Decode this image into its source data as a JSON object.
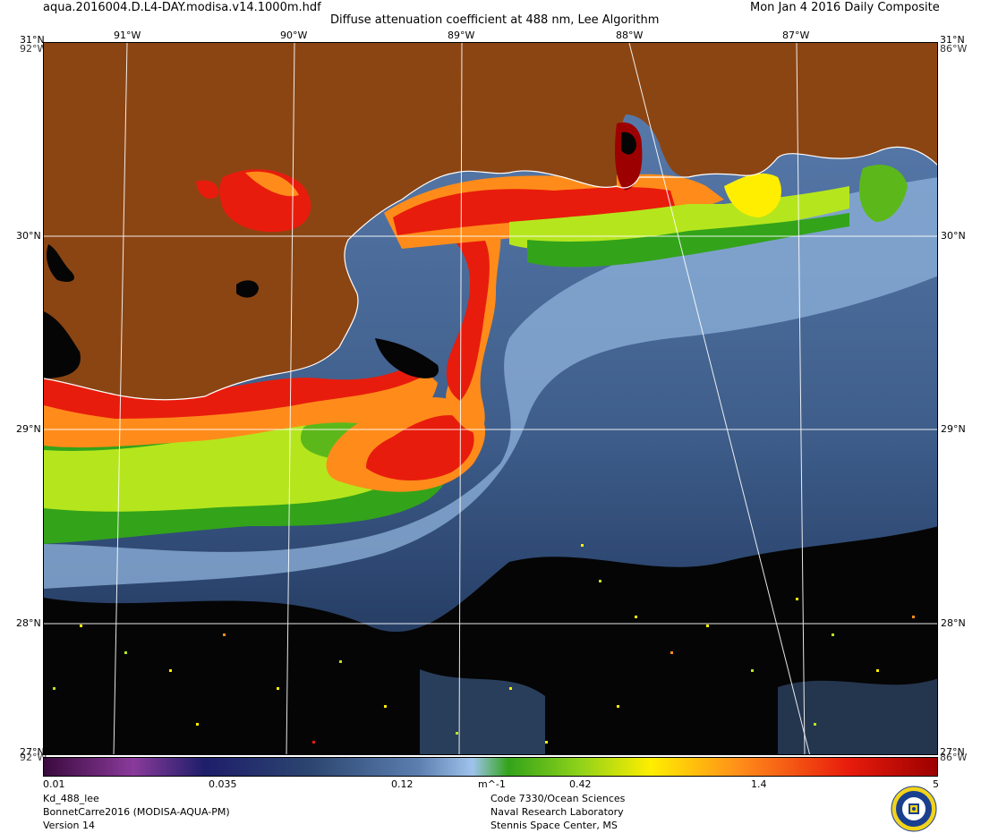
{
  "header": {
    "filename": "aqua.2016004.D.L4-DAY.modisa.v14.1000m.hdf",
    "title": "Diffuse attenuation coefficient at 488 nm, Lee Algorithm",
    "date": "Mon Jan  4 2016 Daily Composite"
  },
  "map": {
    "corner_top_left_lat": "31°N",
    "corner_top_left_lon": "92°W",
    "corner_top_right_lat": "31°N",
    "corner_top_right_lon": "86°W",
    "corner_bottom_left_lat": "27°N",
    "corner_bottom_left_lon": "92°W",
    "corner_bottom_right_lat": "27°N",
    "corner_bottom_right_lon": "86°W",
    "lon_labels": [
      "91°W",
      "90°W",
      "89°W",
      "88°W",
      "87°W"
    ],
    "lat_labels": [
      "30°N",
      "29°N",
      "28°N"
    ],
    "colors": {
      "land": "#8b4513",
      "ocean_deep": "#3e5d8a",
      "ocean_mid": "#5c7fb0",
      "ocean_light": "#8fb3dc",
      "green": "#33a31a",
      "yellow_green": "#b5e61d",
      "yellow": "#ffee00",
      "orange": "#ff8c1a",
      "red": "#e81c0c",
      "dark_red": "#9c0000",
      "no_data": "#000000",
      "grid": "#ffffff"
    }
  },
  "colorbar": {
    "ticks": [
      "0.01",
      "0.035",
      "0.12",
      "m^-1",
      "0.42",
      "1.4",
      "5"
    ],
    "min": 0.01,
    "max": 5,
    "scale": "log"
  },
  "footer": {
    "product": "Kd_488_lee",
    "project": "BonnetCarre2016 (MODISA-AQUA-PM)",
    "version": "Version 14",
    "org_code": "Code 7330/Ocean Sciences",
    "org_name": "Naval Research Laboratory",
    "org_location": "Stennis Space Center, MS"
  },
  "logo": {
    "icon": "nrl-seal-icon"
  }
}
